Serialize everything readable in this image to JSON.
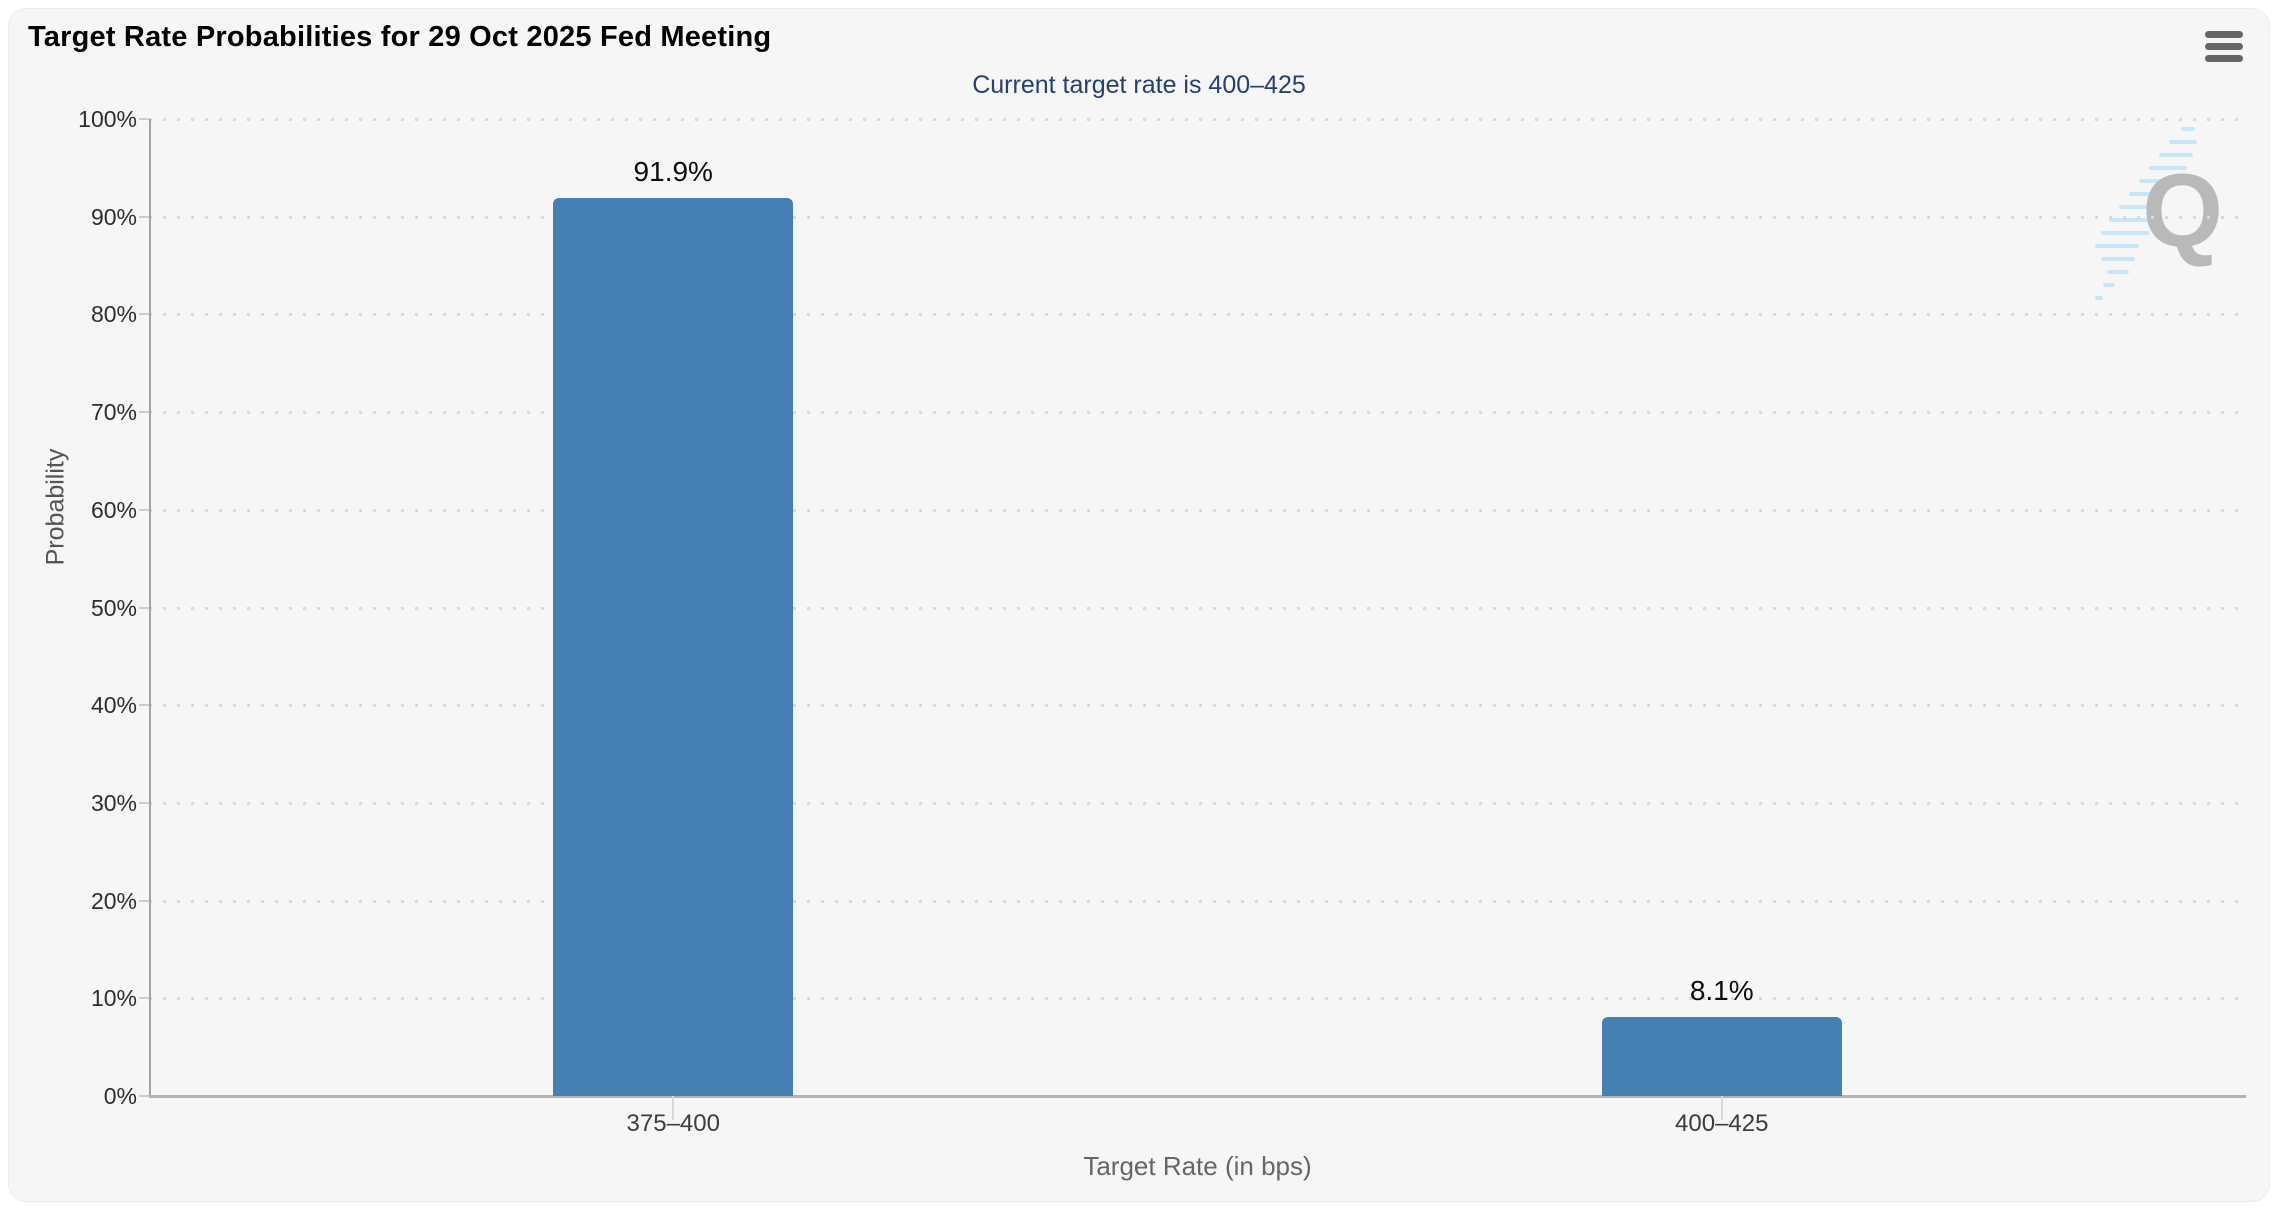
{
  "chart": {
    "menu_icon": "hamburger-menu-icon",
    "watermark_letter": "Q"
  },
  "chart_data": {
    "type": "bar",
    "title": "Target Rate Probabilities for 29 Oct 2025 Fed Meeting",
    "subtitle": "Current target rate is 400–425",
    "categories": [
      "375–400",
      "400–425"
    ],
    "values": [
      91.9,
      8.1
    ],
    "value_labels": [
      "91.9%",
      "8.1%"
    ],
    "xlabel": "Target Rate (in bps)",
    "ylabel": "Probability",
    "ylim": [
      0,
      100
    ],
    "ytick_step": 10,
    "ytick_labels": [
      "0%",
      "10%",
      "20%",
      "30%",
      "40%",
      "50%",
      "60%",
      "70%",
      "80%",
      "90%",
      "100%"
    ],
    "grid": "dotted-horizontal",
    "legend": "none",
    "bar_color": "#4580b5",
    "subtitle_color": "#27406e",
    "background_color": "#f6f6f7"
  }
}
